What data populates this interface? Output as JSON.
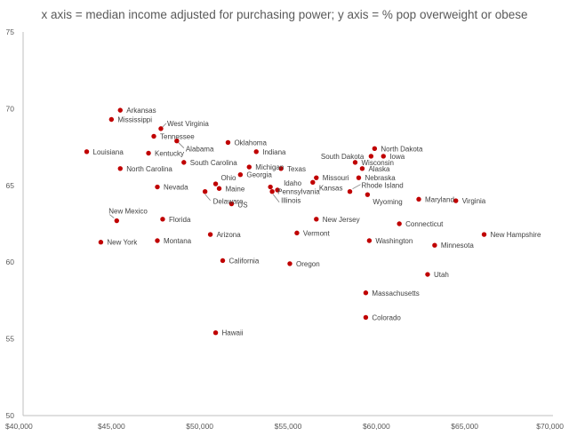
{
  "chart_data": {
    "type": "scatter",
    "title": "x axis = median income adjusted for purchasing power; y axis = % pop overweight or obese",
    "xlabel": "",
    "ylabel": "",
    "xlim": [
      40000,
      70000
    ],
    "ylim": [
      50,
      75
    ],
    "x_ticks": [
      40000,
      45000,
      50000,
      55000,
      60000,
      65000,
      70000
    ],
    "x_tick_labels": [
      "$40,000",
      "$45,000",
      "$50,000",
      "$55,000",
      "$60,000",
      "$65,000",
      "$70,000"
    ],
    "y_ticks": [
      50,
      55,
      60,
      65,
      70,
      75
    ],
    "y_tick_labels": [
      "50",
      "55",
      "60",
      "65",
      "70",
      "75"
    ],
    "grid": false,
    "color": "#c00000",
    "points": [
      {
        "name": "Arkansas",
        "x": 45500,
        "y": 69.9
      },
      {
        "name": "Mississippi",
        "x": 45000,
        "y": 69.3
      },
      {
        "name": "West Virginia",
        "x": 47800,
        "y": 68.7
      },
      {
        "name": "Tennessee",
        "x": 47400,
        "y": 68.2
      },
      {
        "name": "Alabama",
        "x": 48700,
        "y": 67.9
      },
      {
        "name": "Louisiana",
        "x": 43600,
        "y": 67.2
      },
      {
        "name": "Kentucky",
        "x": 47100,
        "y": 67.1
      },
      {
        "name": "Oklahoma",
        "x": 51600,
        "y": 67.8
      },
      {
        "name": "Indiana",
        "x": 53200,
        "y": 67.2
      },
      {
        "name": "North Carolina",
        "x": 45500,
        "y": 66.1
      },
      {
        "name": "South Carolina",
        "x": 49100,
        "y": 66.5
      },
      {
        "name": "Michigan",
        "x": 52800,
        "y": 66.2
      },
      {
        "name": "Georgia",
        "x": 52300,
        "y": 65.7
      },
      {
        "name": "Texas",
        "x": 54600,
        "y": 66.1
      },
      {
        "name": "Ohio",
        "x": 50900,
        "y": 65.1
      },
      {
        "name": "Maine",
        "x": 51100,
        "y": 64.8
      },
      {
        "name": "Nevada",
        "x": 47600,
        "y": 64.9
      },
      {
        "name": "Delaware",
        "x": 50300,
        "y": 64.6
      },
      {
        "name": "US",
        "x": 51800,
        "y": 63.8
      },
      {
        "name": "Idaho",
        "x": 54400,
        "y": 64.7
      },
      {
        "name": "Pennsylvania",
        "x": 54000,
        "y": 64.9
      },
      {
        "name": "Illinois",
        "x": 54100,
        "y": 64.6
      },
      {
        "name": "Missouri",
        "x": 56600,
        "y": 65.5
      },
      {
        "name": "Kansas",
        "x": 56400,
        "y": 65.2
      },
      {
        "name": "South Dakota",
        "x": 59700,
        "y": 66.9
      },
      {
        "name": "North Dakota",
        "x": 59900,
        "y": 67.4
      },
      {
        "name": "Iowa",
        "x": 60400,
        "y": 66.9
      },
      {
        "name": "Wisconsin",
        "x": 58800,
        "y": 66.5
      },
      {
        "name": "Alaska",
        "x": 59200,
        "y": 66.1
      },
      {
        "name": "Nebraska",
        "x": 59000,
        "y": 65.5
      },
      {
        "name": "Rhode Island",
        "x": 58500,
        "y": 64.6
      },
      {
        "name": "Wyoming",
        "x": 59500,
        "y": 64.4
      },
      {
        "name": "Maryland",
        "x": 62400,
        "y": 64.1
      },
      {
        "name": "Virginia",
        "x": 64500,
        "y": 64.0
      },
      {
        "name": "New Mexico",
        "x": 45300,
        "y": 62.7
      },
      {
        "name": "Florida",
        "x": 47900,
        "y": 62.8
      },
      {
        "name": "New Jersey",
        "x": 56600,
        "y": 62.8
      },
      {
        "name": "Connecticut",
        "x": 61300,
        "y": 62.5
      },
      {
        "name": "Arizona",
        "x": 50600,
        "y": 61.8
      },
      {
        "name": "Vermont",
        "x": 55500,
        "y": 61.9
      },
      {
        "name": "New Hampshire",
        "x": 66100,
        "y": 61.8
      },
      {
        "name": "New York",
        "x": 44400,
        "y": 61.3
      },
      {
        "name": "Montana",
        "x": 47600,
        "y": 61.4
      },
      {
        "name": "Washington",
        "x": 59600,
        "y": 61.4
      },
      {
        "name": "Minnesota",
        "x": 63300,
        "y": 61.1
      },
      {
        "name": "California",
        "x": 51300,
        "y": 60.1
      },
      {
        "name": "Oregon",
        "x": 55100,
        "y": 59.9
      },
      {
        "name": "Utah",
        "x": 62900,
        "y": 59.2
      },
      {
        "name": "Massachusetts",
        "x": 59400,
        "y": 58.0
      },
      {
        "name": "Colorado",
        "x": 59400,
        "y": 56.4
      },
      {
        "name": "Hawaii",
        "x": 50900,
        "y": 55.4
      }
    ]
  }
}
